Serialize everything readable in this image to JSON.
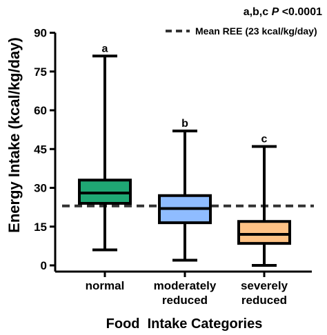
{
  "chart_data": {
    "type": "box",
    "ylabel": "Energy Intake (kcal/kg/day)",
    "xlabel": "Food  Intake Categories",
    "ylim": [
      0,
      90
    ],
    "yticks": [
      0,
      15,
      30,
      45,
      60,
      75,
      90
    ],
    "significance_text": {
      "prefix": "a,b,c ",
      "p": "P",
      "suffix": " <0.0001"
    },
    "reference_line": {
      "label": "Mean REE (23 kcal/kg/day)",
      "value": 23,
      "style": "dashed",
      "color": "#333333"
    },
    "grid": false,
    "legend_position": "top-right",
    "categories": [
      {
        "label_lines": [
          "normal"
        ],
        "sig": "a",
        "min": 6,
        "q1": 24,
        "median": 28,
        "q3": 33,
        "max": 81,
        "color": "#1fa774"
      },
      {
        "label_lines": [
          "moderately",
          "reduced"
        ],
        "sig": "b",
        "min": 2,
        "q1": 16.5,
        "median": 22,
        "q3": 27,
        "max": 52,
        "color": "#8fbcff"
      },
      {
        "label_lines": [
          "severely",
          "reduced"
        ],
        "sig": "c",
        "min": 0,
        "q1": 8.5,
        "median": 12,
        "q3": 17,
        "max": 46,
        "color": "#ffc285"
      }
    ]
  }
}
